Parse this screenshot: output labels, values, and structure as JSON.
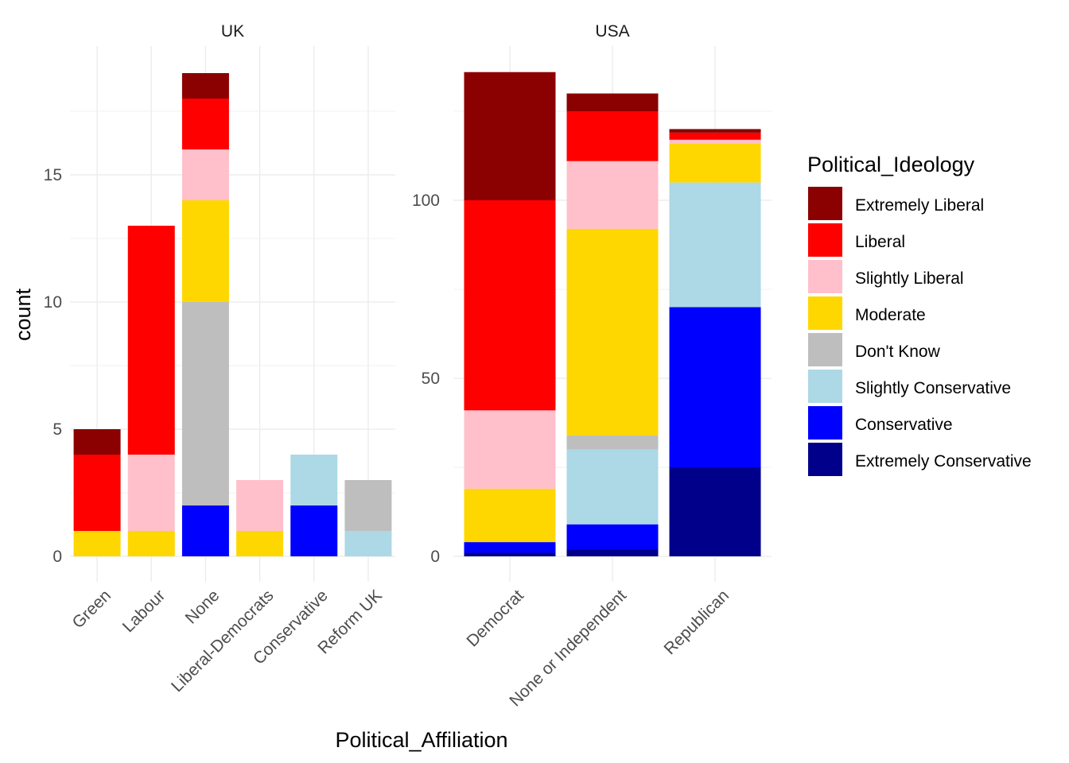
{
  "chart_data": {
    "type": "bar",
    "stacked": true,
    "xlabel": "Political_Affiliation",
    "ylabel": "count",
    "grid": true,
    "legend": {
      "title": "Political_Ideology",
      "placement": "right",
      "items": [
        {
          "name": "Extremely Liberal",
          "color": "#8B0000"
        },
        {
          "name": "Liberal",
          "color": "#FF0000"
        },
        {
          "name": "Slightly Liberal",
          "color": "#FFC0CB"
        },
        {
          "name": "Moderate",
          "color": "#FFD700"
        },
        {
          "name": "Don't Know",
          "color": "#BEBEBE"
        },
        {
          "name": "Slightly Conservative",
          "color": "#ADD8E6"
        },
        {
          "name": "Conservative",
          "color": "#0000FF"
        },
        {
          "name": "Extremely Conservative",
          "color": "#00008B"
        }
      ]
    },
    "panels": [
      {
        "title": "UK",
        "ylim": [
          0,
          19
        ],
        "yticks": [
          0,
          5,
          10,
          15
        ],
        "categories": [
          "Green",
          "Labour",
          "None",
          "Liberal-Democrats",
          "Conservative",
          "Reform UK"
        ],
        "series": [
          {
            "name": "Extremely Liberal",
            "values": [
              1,
              0,
              1,
              0,
              0,
              0
            ]
          },
          {
            "name": "Liberal",
            "values": [
              3,
              9,
              2,
              0,
              0,
              0
            ]
          },
          {
            "name": "Slightly Liberal",
            "values": [
              0,
              3,
              2,
              2,
              0,
              0
            ]
          },
          {
            "name": "Moderate",
            "values": [
              1,
              1,
              4,
              1,
              0,
              0
            ]
          },
          {
            "name": "Don't Know",
            "values": [
              0,
              0,
              8,
              0,
              0,
              2
            ]
          },
          {
            "name": "Slightly Conservative",
            "values": [
              0,
              0,
              0,
              0,
              2,
              1
            ]
          },
          {
            "name": "Conservative",
            "values": [
              0,
              0,
              2,
              0,
              2,
              0
            ]
          },
          {
            "name": "Extremely Conservative",
            "values": [
              0,
              0,
              0,
              0,
              0,
              0
            ]
          }
        ]
      },
      {
        "title": "USA",
        "ylim": [
          0,
          136
        ],
        "yticks": [
          0,
          50,
          100
        ],
        "categories": [
          "Democrat",
          "None or Independent",
          "Republican"
        ],
        "series": [
          {
            "name": "Extremely Liberal",
            "values": [
              36,
              5,
              1
            ]
          },
          {
            "name": "Liberal",
            "values": [
              59,
              14,
              2
            ]
          },
          {
            "name": "Slightly Liberal",
            "values": [
              22,
              19,
              1
            ]
          },
          {
            "name": "Moderate",
            "values": [
              15,
              58,
              11
            ]
          },
          {
            "name": "Don't Know",
            "values": [
              0,
              4,
              0
            ]
          },
          {
            "name": "Slightly Conservative",
            "values": [
              0,
              21,
              35
            ]
          },
          {
            "name": "Conservative",
            "values": [
              3,
              7,
              45
            ]
          },
          {
            "name": "Extremely Conservative",
            "values": [
              1,
              2,
              25
            ]
          }
        ]
      }
    ]
  }
}
